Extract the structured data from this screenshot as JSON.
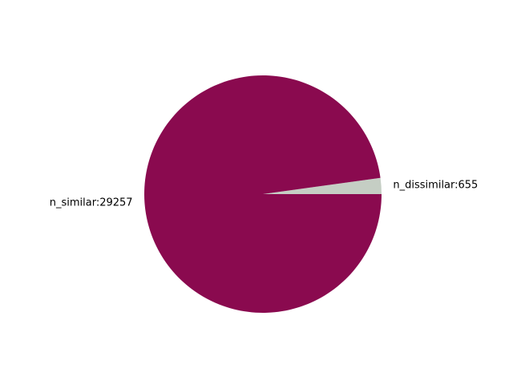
{
  "chart_data": {
    "type": "pie",
    "title": "",
    "slices": [
      {
        "label": "n_dissimilar:655",
        "value": 655,
        "color": "#c5cec4"
      },
      {
        "label": "n_similar:29257",
        "value": 29257,
        "color": "#8a0a4f"
      }
    ],
    "start_angle_deg": 0,
    "direction": "counterclockwise"
  }
}
